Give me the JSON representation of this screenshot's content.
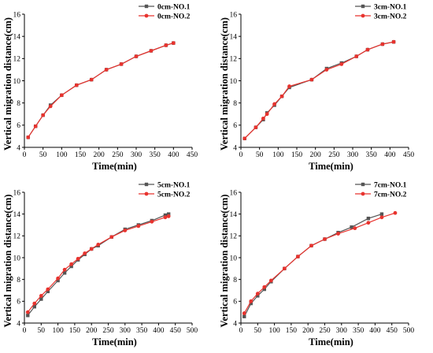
{
  "chart_data": [
    {
      "type": "line",
      "xlabel": "Time(min)",
      "ylabel": "Vertical migration distance(cm)",
      "xlim": [
        0,
        450
      ],
      "ylim": [
        4,
        16
      ],
      "xticks": [
        0,
        50,
        100,
        150,
        200,
        250,
        300,
        350,
        400,
        450
      ],
      "yticks": [
        4,
        6,
        8,
        10,
        12,
        14,
        16
      ],
      "grid": false,
      "legend_position": "top-right",
      "series": [
        {
          "name": "0cm-NO.1",
          "color": "#555555",
          "marker": "square",
          "points": [
            [
              10,
              4.9
            ],
            [
              30,
              5.9
            ],
            [
              50,
              6.9
            ],
            [
              70,
              7.8
            ],
            [
              100,
              8.7
            ],
            [
              140,
              9.6
            ],
            [
              180,
              10.1
            ],
            [
              220,
              11.0
            ],
            [
              260,
              11.5
            ],
            [
              300,
              12.2
            ],
            [
              340,
              12.7
            ],
            [
              380,
              13.2
            ],
            [
              400,
              13.4
            ]
          ]
        },
        {
          "name": "0cm-NO.2",
          "color": "#e8332e",
          "marker": "circle",
          "points": [
            [
              10,
              4.9
            ],
            [
              30,
              5.9
            ],
            [
              50,
              6.9
            ],
            [
              70,
              7.7
            ],
            [
              100,
              8.7
            ],
            [
              140,
              9.6
            ],
            [
              180,
              10.1
            ],
            [
              220,
              11.0
            ],
            [
              260,
              11.5
            ],
            [
              300,
              12.2
            ],
            [
              340,
              12.7
            ],
            [
              380,
              13.2
            ],
            [
              400,
              13.4
            ]
          ]
        }
      ]
    },
    {
      "type": "line",
      "xlabel": "Time(min)",
      "ylabel": "Vertical migration distance(cm)",
      "xlim": [
        0,
        450
      ],
      "ylim": [
        4,
        16
      ],
      "xticks": [
        0,
        50,
        100,
        150,
        200,
        250,
        300,
        350,
        400,
        450
      ],
      "yticks": [
        4,
        6,
        8,
        10,
        12,
        14,
        16
      ],
      "grid": false,
      "legend_position": "top-right",
      "series": [
        {
          "name": "3cm-NO.1",
          "color": "#555555",
          "marker": "square",
          "points": [
            [
              10,
              4.8
            ],
            [
              40,
              5.8
            ],
            [
              60,
              6.5
            ],
            [
              70,
              7.1
            ],
            [
              90,
              7.8
            ],
            [
              110,
              8.6
            ],
            [
              130,
              9.4
            ],
            [
              190,
              10.1
            ],
            [
              230,
              11.1
            ],
            [
              270,
              11.6
            ],
            [
              310,
              12.2
            ],
            [
              340,
              12.8
            ],
            [
              380,
              13.3
            ],
            [
              410,
              13.5
            ]
          ]
        },
        {
          "name": "3cm-NO.2",
          "color": "#e8332e",
          "marker": "circle",
          "points": [
            [
              10,
              4.8
            ],
            [
              40,
              5.8
            ],
            [
              60,
              6.6
            ],
            [
              70,
              7.0
            ],
            [
              90,
              7.9
            ],
            [
              110,
              8.6
            ],
            [
              130,
              9.5
            ],
            [
              190,
              10.1
            ],
            [
              230,
              11.0
            ],
            [
              270,
              11.5
            ],
            [
              310,
              12.2
            ],
            [
              340,
              12.8
            ],
            [
              380,
              13.3
            ],
            [
              410,
              13.5
            ]
          ]
        }
      ]
    },
    {
      "type": "line",
      "xlabel": "Time(min)",
      "ylabel": "Vertical migration distance(cm)",
      "xlim": [
        0,
        500
      ],
      "ylim": [
        4,
        16
      ],
      "xticks": [
        0,
        50,
        100,
        150,
        200,
        250,
        300,
        350,
        400,
        450,
        500
      ],
      "yticks": [
        4,
        6,
        8,
        10,
        12,
        14,
        16
      ],
      "grid": false,
      "legend_position": "top-right",
      "series": [
        {
          "name": "5cm-NO.1",
          "color": "#555555",
          "marker": "square",
          "points": [
            [
              10,
              4.7
            ],
            [
              30,
              5.5
            ],
            [
              50,
              6.2
            ],
            [
              70,
              6.9
            ],
            [
              100,
              7.9
            ],
            [
              120,
              8.6
            ],
            [
              140,
              9.2
            ],
            [
              160,
              9.8
            ],
            [
              180,
              10.3
            ],
            [
              200,
              10.8
            ],
            [
              220,
              11.1
            ],
            [
              260,
              11.9
            ],
            [
              300,
              12.6
            ],
            [
              340,
              13.0
            ],
            [
              380,
              13.4
            ],
            [
              420,
              13.9
            ],
            [
              430,
              14.0
            ]
          ]
        },
        {
          "name": "5cm-NO.2",
          "color": "#e8332e",
          "marker": "circle",
          "points": [
            [
              10,
              5.0
            ],
            [
              30,
              5.8
            ],
            [
              50,
              6.5
            ],
            [
              70,
              7.1
            ],
            [
              100,
              8.1
            ],
            [
              120,
              8.9
            ],
            [
              140,
              9.4
            ],
            [
              160,
              9.9
            ],
            [
              180,
              10.4
            ],
            [
              200,
              10.8
            ],
            [
              220,
              11.2
            ],
            [
              260,
              11.9
            ],
            [
              300,
              12.5
            ],
            [
              340,
              12.9
            ],
            [
              380,
              13.3
            ],
            [
              420,
              13.7
            ],
            [
              430,
              13.8
            ]
          ]
        }
      ]
    },
    {
      "type": "line",
      "xlabel": "Time(min)",
      "ylabel": "Vertical migration distance(cm)",
      "xlim": [
        0,
        500
      ],
      "ylim": [
        4,
        16
      ],
      "xticks": [
        0,
        50,
        100,
        150,
        200,
        250,
        300,
        350,
        400,
        450,
        500
      ],
      "yticks": [
        4,
        6,
        8,
        10,
        12,
        14,
        16
      ],
      "grid": false,
      "legend_position": "top-right",
      "series": [
        {
          "name": "7cm-NO.1",
          "color": "#555555",
          "marker": "square",
          "points": [
            [
              10,
              4.6
            ],
            [
              30,
              5.8
            ],
            [
              50,
              6.5
            ],
            [
              70,
              7.1
            ],
            [
              90,
              7.8
            ],
            [
              130,
              9.0
            ],
            [
              170,
              10.1
            ],
            [
              210,
              11.1
            ],
            [
              250,
              11.7
            ],
            [
              290,
              12.3
            ],
            [
              330,
              12.8
            ],
            [
              380,
              13.6
            ],
            [
              420,
              14.0
            ]
          ]
        },
        {
          "name": "7cm-NO.2",
          "color": "#e8332e",
          "marker": "circle",
          "points": [
            [
              10,
              4.9
            ],
            [
              30,
              6.0
            ],
            [
              50,
              6.7
            ],
            [
              70,
              7.3
            ],
            [
              90,
              7.9
            ],
            [
              130,
              9.0
            ],
            [
              170,
              10.1
            ],
            [
              210,
              11.1
            ],
            [
              250,
              11.7
            ],
            [
              290,
              12.2
            ],
            [
              340,
              12.7
            ],
            [
              380,
              13.2
            ],
            [
              420,
              13.7
            ],
            [
              460,
              14.1
            ]
          ]
        }
      ]
    }
  ]
}
